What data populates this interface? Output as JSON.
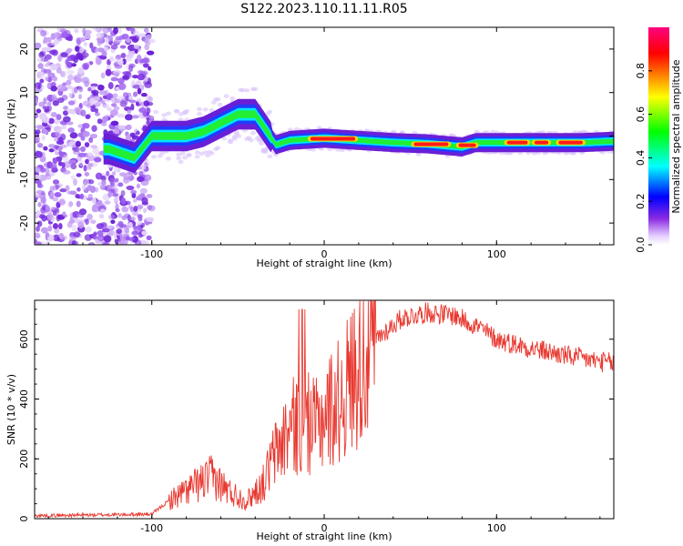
{
  "title": "S122.2023.110.11.11.R05",
  "chart_data": [
    {
      "type": "heatmap",
      "name": "spectrogram",
      "xlabel": "Height of straight line (km)",
      "ylabel": "Frequency (Hz)",
      "xlim": [
        -168,
        168
      ],
      "ylim": [
        -25,
        25
      ],
      "xticks": [
        -100,
        0,
        100
      ],
      "xtick_labels": [
        "-100",
        "0",
        "100"
      ],
      "yticks": [
        -20,
        -10,
        0,
        10,
        20
      ],
      "ytick_labels": [
        "-20",
        "-10",
        "0",
        "10",
        "20"
      ],
      "track": [
        {
          "x": -125,
          "y": -3
        },
        {
          "x": -110,
          "y": -5
        },
        {
          "x": -100,
          "y": 0
        },
        {
          "x": -90,
          "y": 0
        },
        {
          "x": -80,
          "y": 0
        },
        {
          "x": -70,
          "y": 1
        },
        {
          "x": -60,
          "y": 3
        },
        {
          "x": -50,
          "y": 5
        },
        {
          "x": -40,
          "y": 5
        },
        {
          "x": -33,
          "y": 1
        },
        {
          "x": -28,
          "y": -2
        },
        {
          "x": -20,
          "y": -1
        },
        {
          "x": 0,
          "y": -0.5
        },
        {
          "x": 20,
          "y": -1
        },
        {
          "x": 40,
          "y": -1.5
        },
        {
          "x": 60,
          "y": -1.8
        },
        {
          "x": 80,
          "y": -2.5
        },
        {
          "x": 88,
          "y": -1.5
        },
        {
          "x": 110,
          "y": -1.5
        },
        {
          "x": 130,
          "y": -1.5
        },
        {
          "x": 150,
          "y": -1.5
        },
        {
          "x": 168,
          "y": -1.2
        }
      ]
    },
    {
      "type": "line",
      "name": "snr",
      "xlabel": "Height of straight line (km)",
      "ylabel": "SNR (10 * v/v)",
      "xlim": [
        -168,
        168
      ],
      "ylim": [
        0,
        730
      ],
      "xticks": [
        -100,
        0,
        100
      ],
      "xtick_labels": [
        "-100",
        "0",
        "100"
      ],
      "yticks": [
        0,
        200,
        400,
        600
      ],
      "ytick_labels": [
        "0",
        "200",
        "400",
        "600"
      ],
      "series": [
        {
          "name": "SNR",
          "color": "#e8382f",
          "envelope": [
            {
              "x": -168,
              "y": 10
            },
            {
              "x": -100,
              "y": 15
            },
            {
              "x": -90,
              "y": 60
            },
            {
              "x": -75,
              "y": 110
            },
            {
              "x": -65,
              "y": 140
            },
            {
              "x": -55,
              "y": 90
            },
            {
              "x": -45,
              "y": 60
            },
            {
              "x": -35,
              "y": 120
            },
            {
              "x": -30,
              "y": 200
            },
            {
              "x": -20,
              "y": 300
            },
            {
              "x": -12,
              "y": 330
            },
            {
              "x": -5,
              "y": 300
            },
            {
              "x": 0,
              "y": 350
            },
            {
              "x": 10,
              "y": 400
            },
            {
              "x": 20,
              "y": 520
            },
            {
              "x": 30,
              "y": 600
            },
            {
              "x": 45,
              "y": 670
            },
            {
              "x": 60,
              "y": 690
            },
            {
              "x": 75,
              "y": 680
            },
            {
              "x": 90,
              "y": 640
            },
            {
              "x": 100,
              "y": 600
            },
            {
              "x": 120,
              "y": 570
            },
            {
              "x": 140,
              "y": 545
            },
            {
              "x": 160,
              "y": 525
            },
            {
              "x": 168,
              "y": 520
            }
          ]
        }
      ]
    }
  ],
  "colorbar": {
    "label": "Normalized spectral amplitude",
    "range": [
      0,
      1
    ],
    "ticks": [
      0.0,
      0.2,
      0.4,
      0.6,
      0.8
    ],
    "tick_labels": [
      "0.0",
      "0.2",
      "0.4",
      "0.6",
      "0.8"
    ],
    "colors": [
      "#ffffff",
      "#8a2be2",
      "#0000ff",
      "#00ffff",
      "#00ff00",
      "#ffff00",
      "#ff8000",
      "#ff0000",
      "#ff00a0"
    ]
  }
}
